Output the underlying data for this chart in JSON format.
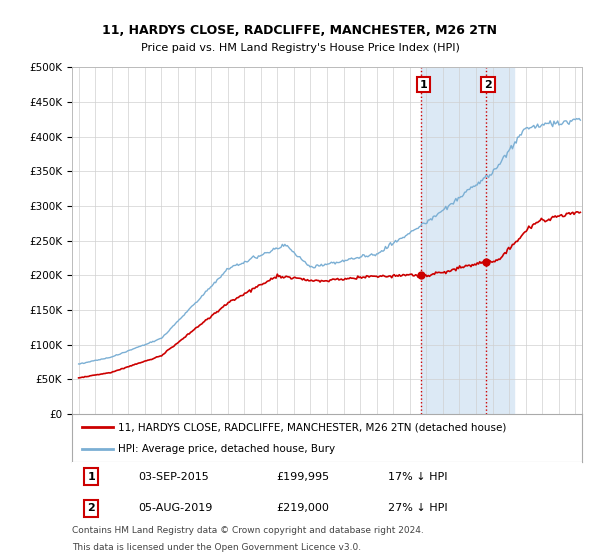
{
  "title": "11, HARDYS CLOSE, RADCLIFFE, MANCHESTER, M26 2TN",
  "subtitle": "Price paid vs. HM Land Registry's House Price Index (HPI)",
  "ylim": [
    0,
    500000
  ],
  "yticks": [
    0,
    50000,
    100000,
    150000,
    200000,
    250000,
    300000,
    350000,
    400000,
    450000,
    500000
  ],
  "ytick_labels": [
    "£0",
    "£50K",
    "£100K",
    "£150K",
    "£200K",
    "£250K",
    "£300K",
    "£350K",
    "£400K",
    "£450K",
    "£500K"
  ],
  "legend_line1": "11, HARDYS CLOSE, RADCLIFFE, MANCHESTER, M26 2TN (detached house)",
  "legend_line2": "HPI: Average price, detached house, Bury",
  "annotation1": {
    "label": "1",
    "date": "03-SEP-2015",
    "price": "£199,995",
    "pct": "17% ↓ HPI"
  },
  "annotation2": {
    "label": "2",
    "date": "05-AUG-2019",
    "price": "£219,000",
    "pct": "27% ↓ HPI"
  },
  "footnote1": "Contains HM Land Registry data © Crown copyright and database right 2024.",
  "footnote2": "This data is licensed under the Open Government Licence v3.0.",
  "sale_color": "#cc0000",
  "hpi_color": "#7bafd4",
  "highlight_color": "#dce9f5",
  "sale1_x": 2015.67,
  "sale1_y": 199995,
  "sale2_x": 2019.58,
  "sale2_y": 219000,
  "highlight1_xmin": 2015.67,
  "highlight1_xmax": 2019.58,
  "highlight2_xmin": 2019.58,
  "highlight2_xmax": 2021.3,
  "xlim_min": 1994.6,
  "xlim_max": 2025.4,
  "background_color": "#ffffff"
}
